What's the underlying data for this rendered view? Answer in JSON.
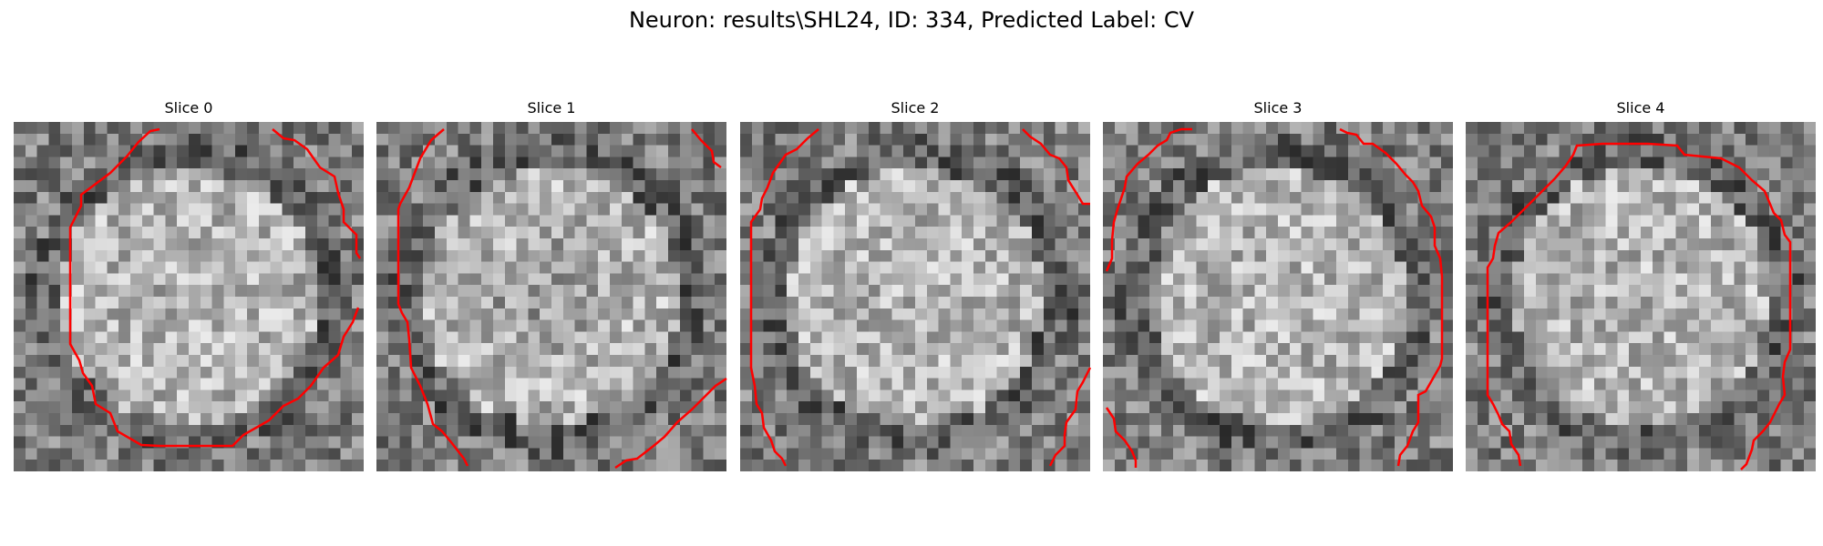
{
  "figure": {
    "title": "Neuron: results\\SHL24, ID: 334, Predicted Label: CV"
  },
  "panels": [
    {
      "title": "Slice 0",
      "seed": 11,
      "center_dark": 0.0
    },
    {
      "title": "Slice 1",
      "seed": 23,
      "center_dark": 0.35
    },
    {
      "title": "Slice 2",
      "seed": 37,
      "center_dark": 0.0
    },
    {
      "title": "Slice 3",
      "seed": 41,
      "center_dark": 0.0
    },
    {
      "title": "Slice 4",
      "seed": 53,
      "center_dark": 0.0
    }
  ],
  "colors": {
    "contour": "#ff0000",
    "background": "#ffffff"
  }
}
